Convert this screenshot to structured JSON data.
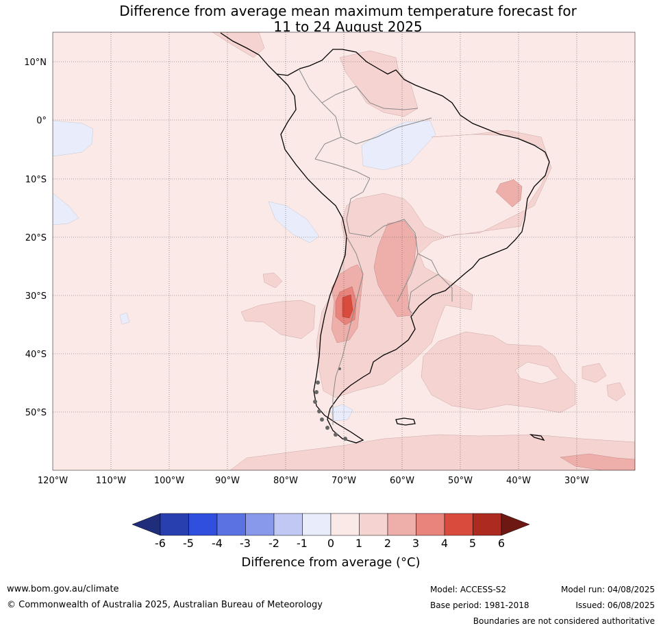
{
  "title_line1": "Difference from average mean maximum temperature forecast for",
  "title_line2": "11 to 24 August 2025",
  "map": {
    "lon_labels": [
      "120°W",
      "110°W",
      "100°W",
      "90°W",
      "80°W",
      "70°W",
      "60°W",
      "50°W",
      "40°W",
      "30°W"
    ],
    "lat_labels": [
      "10°N",
      "0°",
      "10°S",
      "20°S",
      "30°S",
      "40°S",
      "50°S"
    ],
    "extent": {
      "lon_min": -120,
      "lon_max": -20,
      "lat_min": -60,
      "lat_max": 15
    }
  },
  "colorbar": {
    "labels": [
      "-6",
      "-5",
      "-4",
      "-3",
      "-2",
      "-1",
      "0",
      "1",
      "2",
      "3",
      "4",
      "5",
      "6"
    ],
    "colors": [
      "#1f2d7a",
      "#283fb0",
      "#2f4fdc",
      "#5b72e3",
      "#8898ea",
      "#c2c8f4",
      "#e8ecfb",
      "#fbe9e8",
      "#f5d3d1",
      "#eeaeaa",
      "#e8847c",
      "#d84b3d",
      "#ad2a21",
      "#6e1814"
    ],
    "title": "Difference from average (°C)"
  },
  "footer": {
    "website": "www.bom.gov.au/climate",
    "copyright": "© Commonwealth of Australia 2025, Australian Bureau of Meteorology",
    "model": "Model: ACCESS-S2",
    "base_period": "Base period: 1981-2018",
    "model_run": "Model run: 04/08/2025",
    "issued": "Issued: 06/08/2025",
    "disclaimer": "Boundaries are not considered authoritative"
  }
}
